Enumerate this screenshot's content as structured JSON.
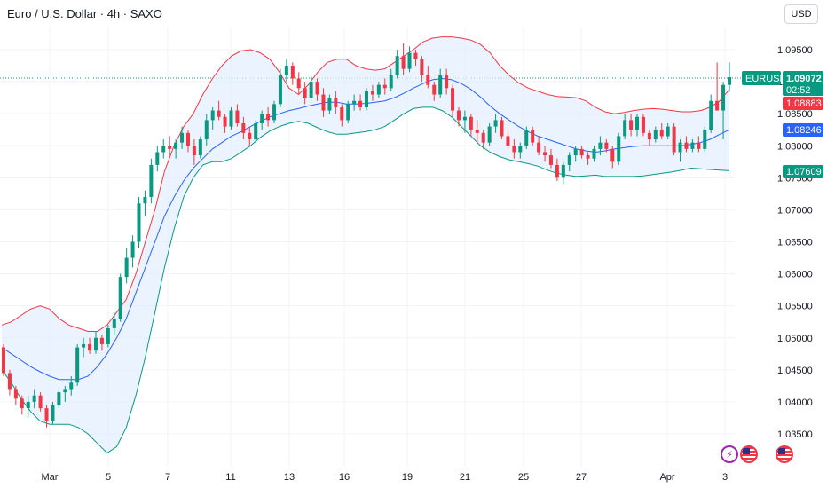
{
  "header": {
    "title": "Euro / U.S. Dollar · 4h · SAXO",
    "currency_button": "USD"
  },
  "price_tags": {
    "symbol": "EURUSD",
    "last_price": "1.09072",
    "countdown": "02:52",
    "upper_band": "1.08883",
    "middle_band": "1.08246",
    "lower_band": "1.07609"
  },
  "colors": {
    "bull": "#089981",
    "bear": "#f23645",
    "upper_band": "#f23645",
    "middle_band": "#2962ff",
    "lower_band": "#089981",
    "band_fill": "#e3effd"
  },
  "icons": [
    "lightning-icon",
    "us-flag-icon",
    "us-flag-icon"
  ],
  "chart_data": {
    "type": "candlestick",
    "title": "Euro / U.S. Dollar · 4h · SAXO",
    "ylim": [
      1.03,
      1.1
    ],
    "y_ticks": [
      "1.03500",
      "1.04000",
      "1.04500",
      "1.05000",
      "1.05500",
      "1.06000",
      "1.06500",
      "1.07000",
      "1.07500",
      "1.08000",
      "1.08500",
      "1.09000",
      "1.09500"
    ],
    "x_ticks": [
      "Mar",
      "5",
      "7",
      "11",
      "13",
      "16",
      "19",
      "21",
      "25",
      "27",
      "Apr",
      "3"
    ],
    "grid": true,
    "indicator": "Bollinger Bands",
    "ohlc": [
      [
        1.0485,
        1.049,
        1.044,
        1.0445
      ],
      [
        1.0445,
        1.045,
        1.041,
        1.042
      ],
      [
        1.042,
        1.0425,
        1.0395,
        1.0405
      ],
      [
        1.0405,
        1.041,
        1.038,
        1.039
      ],
      [
        1.039,
        1.041,
        1.0375,
        1.04
      ],
      [
        1.04,
        1.042,
        1.039,
        1.041
      ],
      [
        1.041,
        1.0415,
        1.0385,
        1.039
      ],
      [
        1.039,
        1.0395,
        1.036,
        1.037
      ],
      [
        1.037,
        1.04,
        1.0365,
        1.0395
      ],
      [
        1.0395,
        1.042,
        1.039,
        1.0415
      ],
      [
        1.0415,
        1.0425,
        1.04,
        1.042
      ],
      [
        1.042,
        1.044,
        1.041,
        1.043
      ],
      [
        1.043,
        1.049,
        1.0425,
        1.0485
      ],
      [
        1.0485,
        1.05,
        1.047,
        1.049
      ],
      [
        1.049,
        1.05,
        1.0475,
        1.048
      ],
      [
        1.048,
        1.051,
        1.0475,
        1.05
      ],
      [
        1.05,
        1.0505,
        1.048,
        1.049
      ],
      [
        1.049,
        1.052,
        1.0485,
        1.0515
      ],
      [
        1.0515,
        1.054,
        1.0505,
        1.053
      ],
      [
        1.053,
        1.06,
        1.0525,
        1.0595
      ],
      [
        1.0595,
        1.064,
        1.0585,
        1.0625
      ],
      [
        1.0625,
        1.066,
        1.061,
        1.065
      ],
      [
        1.065,
        1.072,
        1.064,
        1.071
      ],
      [
        1.071,
        1.073,
        1.069,
        1.072
      ],
      [
        1.072,
        1.078,
        1.071,
        1.077
      ],
      [
        1.077,
        1.08,
        1.076,
        1.079
      ],
      [
        1.079,
        1.081,
        1.078,
        1.08
      ],
      [
        1.08,
        1.0815,
        1.0785,
        1.0795
      ],
      [
        1.0795,
        1.081,
        1.078,
        1.0805
      ],
      [
        1.0805,
        1.083,
        1.0795,
        1.082
      ],
      [
        1.082,
        1.0825,
        1.079,
        1.08
      ],
      [
        1.08,
        1.081,
        1.077,
        1.0785
      ],
      [
        1.0785,
        1.0815,
        1.078,
        1.081
      ],
      [
        1.081,
        1.085,
        1.08,
        1.084
      ],
      [
        1.084,
        1.086,
        1.0825,
        1.0855
      ],
      [
        1.0855,
        1.087,
        1.084,
        1.0845
      ],
      [
        1.0845,
        1.085,
        1.082,
        1.083
      ],
      [
        1.083,
        1.086,
        1.0825,
        1.0855
      ],
      [
        1.0855,
        1.0865,
        1.083,
        1.0835
      ],
      [
        1.0835,
        1.0845,
        1.081,
        1.082
      ],
      [
        1.082,
        1.083,
        1.08,
        1.081
      ],
      [
        1.081,
        1.084,
        1.0805,
        1.0835
      ],
      [
        1.0835,
        1.0855,
        1.0825,
        1.085
      ],
      [
        1.085,
        1.086,
        1.083,
        1.084
      ],
      [
        1.084,
        1.087,
        1.0835,
        1.0865
      ],
      [
        1.0865,
        1.092,
        1.086,
        1.091
      ],
      [
        1.091,
        1.0935,
        1.09,
        1.0925
      ],
      [
        1.0925,
        1.093,
        1.0895,
        1.0905
      ],
      [
        1.0905,
        1.0915,
        1.088,
        1.089
      ],
      [
        1.089,
        1.09,
        1.0865,
        1.0875
      ],
      [
        1.0875,
        1.091,
        1.087,
        1.09
      ],
      [
        1.09,
        1.0905,
        1.087,
        1.088
      ],
      [
        1.088,
        1.089,
        1.0845,
        1.0855
      ],
      [
        1.0855,
        1.088,
        1.085,
        1.0875
      ],
      [
        1.0875,
        1.0885,
        1.085,
        1.086
      ],
      [
        1.086,
        1.0865,
        1.083,
        1.084
      ],
      [
        1.084,
        1.087,
        1.0835,
        1.0865
      ],
      [
        1.0865,
        1.088,
        1.0855,
        1.087
      ],
      [
        1.087,
        1.088,
        1.0855,
        1.086
      ],
      [
        1.086,
        1.089,
        1.0855,
        1.0885
      ],
      [
        1.0885,
        1.0895,
        1.087,
        1.088
      ],
      [
        1.088,
        1.09,
        1.0875,
        1.0895
      ],
      [
        1.0895,
        1.0905,
        1.088,
        1.089
      ],
      [
        1.089,
        1.092,
        1.0885,
        1.091
      ],
      [
        1.091,
        1.095,
        1.0905,
        1.094
      ],
      [
        1.094,
        1.096,
        1.091,
        1.092
      ],
      [
        1.092,
        1.0955,
        1.0915,
        1.0945
      ],
      [
        1.0945,
        1.095,
        1.0925,
        1.0935
      ],
      [
        1.0935,
        1.094,
        1.09,
        1.091
      ],
      [
        1.091,
        1.0925,
        1.089,
        1.0895
      ],
      [
        1.0895,
        1.09,
        1.087,
        1.088
      ],
      [
        1.088,
        1.092,
        1.0875,
        1.091
      ],
      [
        1.091,
        1.092,
        1.088,
        1.089
      ],
      [
        1.089,
        1.0895,
        1.0845,
        1.0855
      ],
      [
        1.0855,
        1.086,
        1.083,
        1.084
      ],
      [
        1.084,
        1.0855,
        1.082,
        1.0845
      ],
      [
        1.0845,
        1.085,
        1.0815,
        1.0825
      ],
      [
        1.0825,
        1.084,
        1.0805,
        1.082
      ],
      [
        1.082,
        1.0825,
        1.0795,
        1.0805
      ],
      [
        1.0805,
        1.0835,
        1.08,
        1.083
      ],
      [
        1.083,
        1.085,
        1.082,
        1.084
      ],
      [
        1.084,
        1.0845,
        1.081,
        1.0815
      ],
      [
        1.0815,
        1.0825,
        1.0795,
        1.08
      ],
      [
        1.08,
        1.081,
        1.078,
        1.079
      ],
      [
        1.079,
        1.0805,
        1.078,
        1.08
      ],
      [
        1.08,
        1.083,
        1.0795,
        1.0825
      ],
      [
        1.0825,
        1.083,
        1.08,
        1.0805
      ],
      [
        1.0805,
        1.0815,
        1.0785,
        1.079
      ],
      [
        1.079,
        1.08,
        1.0775,
        1.0785
      ],
      [
        1.0785,
        1.0795,
        1.0765,
        1.077
      ],
      [
        1.077,
        1.078,
        1.0745,
        1.075
      ],
      [
        1.075,
        1.0775,
        1.074,
        1.077
      ],
      [
        1.077,
        1.079,
        1.076,
        1.0785
      ],
      [
        1.0785,
        1.08,
        1.0775,
        1.0795
      ],
      [
        1.0795,
        1.08,
        1.078,
        1.0785
      ],
      [
        1.0785,
        1.079,
        1.077,
        1.078
      ],
      [
        1.078,
        1.08,
        1.0775,
        1.0795
      ],
      [
        1.0795,
        1.0815,
        1.0785,
        1.0805
      ],
      [
        1.0805,
        1.081,
        1.079,
        1.0795
      ],
      [
        1.0795,
        1.08,
        1.0765,
        1.0775
      ],
      [
        1.0775,
        1.082,
        1.077,
        1.0815
      ],
      [
        1.0815,
        1.085,
        1.081,
        1.084
      ],
      [
        1.084,
        1.085,
        1.0815,
        1.0825
      ],
      [
        1.0825,
        1.085,
        1.0815,
        1.0845
      ],
      [
        1.0845,
        1.085,
        1.0815,
        1.082
      ],
      [
        1.082,
        1.0825,
        1.08,
        1.081
      ],
      [
        1.081,
        1.083,
        1.0805,
        1.0825
      ],
      [
        1.0825,
        1.0835,
        1.081,
        1.0815
      ],
      [
        1.0815,
        1.0835,
        1.081,
        1.083
      ],
      [
        1.083,
        1.0835,
        1.0785,
        1.079
      ],
      [
        1.079,
        1.081,
        1.0775,
        1.0805
      ],
      [
        1.0805,
        1.0815,
        1.079,
        1.0795
      ],
      [
        1.0795,
        1.081,
        1.079,
        1.0805
      ],
      [
        1.0805,
        1.0815,
        1.079,
        1.0795
      ],
      [
        1.0795,
        1.083,
        1.079,
        1.0825
      ],
      [
        1.0825,
        1.088,
        1.082,
        1.087
      ],
      [
        1.087,
        1.093,
        1.086,
        1.0855
      ],
      [
        1.0855,
        1.09,
        1.081,
        1.0895
      ],
      [
        1.0895,
        1.093,
        1.0885,
        1.0907
      ]
    ],
    "series": [
      {
        "name": "Upper",
        "values": [
          1.052,
          1.0525,
          1.0535,
          1.0545,
          1.055,
          1.0545,
          1.053,
          1.052,
          1.0515,
          1.051,
          1.051,
          1.052,
          1.054,
          1.056,
          1.06,
          1.065,
          1.07,
          1.076,
          1.08,
          1.083,
          1.085,
          1.088,
          1.0905,
          1.0925,
          1.094,
          1.0948,
          1.095,
          1.0945,
          1.0935,
          1.0915,
          1.089,
          1.088,
          1.0895,
          1.0915,
          1.093,
          1.0935,
          1.0935,
          1.0925,
          1.092,
          1.0918,
          1.092,
          1.093,
          1.094,
          1.095,
          1.0962,
          1.0968,
          1.097,
          1.097,
          1.0968,
          1.0965,
          1.0958,
          1.0945,
          1.0925,
          1.091,
          1.0898,
          1.089,
          1.0885,
          1.088,
          1.0877,
          1.0876,
          1.0875,
          1.087,
          1.086,
          1.0853,
          1.085,
          1.0852,
          1.0855,
          1.0857,
          1.0858,
          1.0857,
          1.0855,
          1.0853,
          1.0853,
          1.0855,
          1.086,
          1.087,
          1.0888
        ]
      },
      {
        "name": "Basis",
        "values": [
          1.0485,
          1.0475,
          1.0465,
          1.0455,
          1.0447,
          1.044,
          1.0435,
          1.0435,
          1.0435,
          1.044,
          1.0455,
          1.0475,
          1.05,
          1.053,
          1.057,
          1.061,
          1.065,
          1.069,
          1.072,
          1.0745,
          1.0765,
          1.078,
          1.0795,
          1.0805,
          1.0815,
          1.0822,
          1.083,
          1.0838,
          1.0845,
          1.085,
          1.0855,
          1.0858,
          1.0862,
          1.0865,
          1.0868,
          1.0868,
          1.0865,
          1.0865,
          1.0866,
          1.0868,
          1.087,
          1.0875,
          1.0882,
          1.089,
          1.0897,
          1.0903,
          1.0905,
          1.0903,
          1.0897,
          1.0888,
          1.0876,
          1.0862,
          1.085,
          1.084,
          1.083,
          1.0822,
          1.0815,
          1.081,
          1.0805,
          1.08,
          1.0795,
          1.0792,
          1.079,
          1.0792,
          1.0795,
          1.0797,
          1.0799,
          1.08,
          1.08,
          1.08,
          1.08,
          1.08,
          1.0802,
          1.0805,
          1.081,
          1.0818,
          1.0825
        ]
      },
      {
        "name": "Lower",
        "values": [
          1.045,
          1.043,
          1.0405,
          1.0385,
          1.037,
          1.0365,
          1.0365,
          1.0365,
          1.036,
          1.035,
          1.0335,
          1.032,
          1.033,
          1.036,
          1.041,
          1.047,
          1.054,
          1.061,
          1.067,
          1.072,
          1.075,
          1.077,
          1.0775,
          1.0775,
          1.078,
          1.079,
          1.08,
          1.0813,
          1.0823,
          1.083,
          1.0835,
          1.0838,
          1.0835,
          1.0828,
          1.0822,
          1.0818,
          1.0818,
          1.082,
          1.0822,
          1.0825,
          1.083,
          1.084,
          1.085,
          1.0858,
          1.086,
          1.086,
          1.0855,
          1.0845,
          1.083,
          1.0815,
          1.08,
          1.079,
          1.0783,
          1.0778,
          1.0775,
          1.0772,
          1.0768,
          1.0762,
          1.0757,
          1.0754,
          1.0752,
          1.0753,
          1.0754,
          1.0752,
          1.0752,
          1.0752,
          1.0752,
          1.0753,
          1.0755,
          1.0757,
          1.0759,
          1.0762,
          1.0765,
          1.0764,
          1.0763,
          1.0762,
          1.0761
        ]
      }
    ]
  }
}
